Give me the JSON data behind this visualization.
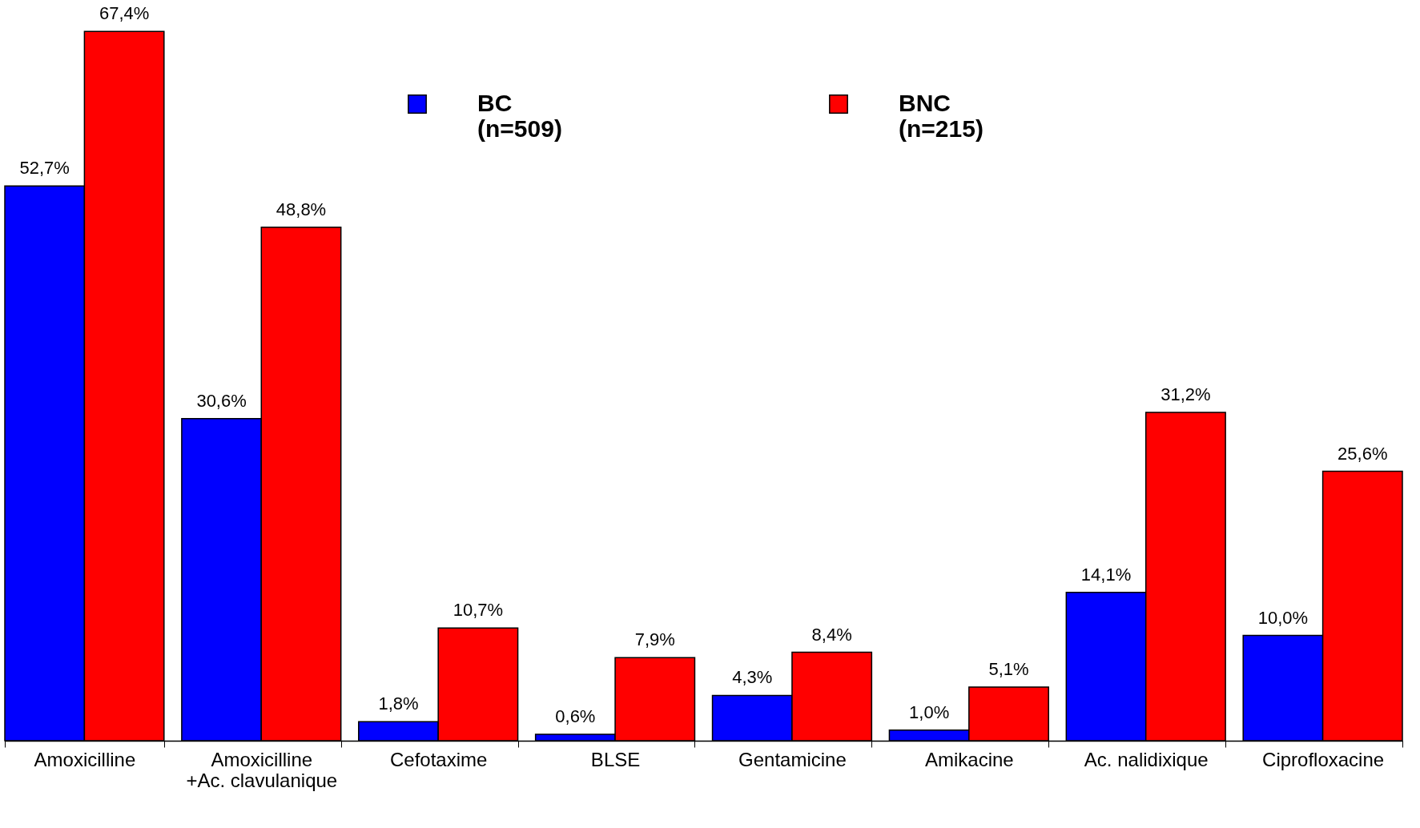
{
  "chart_data": {
    "type": "bar",
    "categories": [
      "Amoxicilline",
      "Amoxicilline\n+Ac. clavulanique",
      "Cefotaxime",
      "BLSE",
      "Gentamicine",
      "Amikacine",
      "Ac. nalidixique",
      "Ciprofloxacine"
    ],
    "series": [
      {
        "name": "BC (n=509)",
        "color": "#0000ff",
        "values": [
          52.7,
          30.6,
          1.8,
          0.6,
          4.3,
          1.0,
          14.1,
          10.0
        ],
        "value_labels": [
          "52,7%",
          "30,6%",
          "1,8%",
          "0,6%",
          "4,3%",
          "1,0%",
          "14,1%",
          "10,0%"
        ]
      },
      {
        "name": "BNC (n=215)",
        "color": "#ff0000",
        "values": [
          67.4,
          48.8,
          10.7,
          7.9,
          8.4,
          5.1,
          31.2,
          25.6
        ],
        "value_labels": [
          "67,4%",
          "48,8%",
          "10,7%",
          "7,9%",
          "8,4%",
          "5,1%",
          "31,2%",
          "25,6%"
        ]
      }
    ],
    "legend": "top",
    "grid": false
  }
}
